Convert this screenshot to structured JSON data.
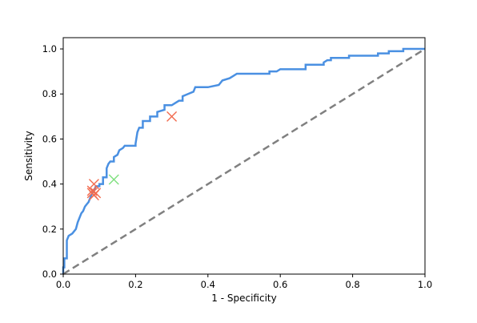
{
  "chart_data": {
    "type": "line",
    "title": "",
    "xlabel": "1 - Specificity",
    "ylabel": "Sensitivity",
    "xlim": [
      0,
      1
    ],
    "ylim": [
      0,
      1.05
    ],
    "xticks": [
      "0.0",
      "0.2",
      "0.4",
      "0.6",
      "0.8",
      "1.0"
    ],
    "yticks": [
      "0.0",
      "0.2",
      "0.4",
      "0.6",
      "0.8",
      "1.0"
    ],
    "grid": false,
    "legend": "none",
    "series": [
      {
        "style": "roc-curve",
        "color": "#4a90e2",
        "points": [
          [
            0.0,
            0.0
          ],
          [
            0.0,
            0.03
          ],
          [
            0.003,
            0.03
          ],
          [
            0.003,
            0.07
          ],
          [
            0.01,
            0.07
          ],
          [
            0.01,
            0.15
          ],
          [
            0.015,
            0.17
          ],
          [
            0.025,
            0.18
          ],
          [
            0.035,
            0.2
          ],
          [
            0.04,
            0.23
          ],
          [
            0.045,
            0.25
          ],
          [
            0.05,
            0.27
          ],
          [
            0.055,
            0.28
          ],
          [
            0.06,
            0.3
          ],
          [
            0.065,
            0.31
          ],
          [
            0.07,
            0.32
          ],
          [
            0.075,
            0.34
          ],
          [
            0.08,
            0.36
          ],
          [
            0.085,
            0.37
          ],
          [
            0.09,
            0.39
          ],
          [
            0.1,
            0.39
          ],
          [
            0.1,
            0.4
          ],
          [
            0.11,
            0.4
          ],
          [
            0.11,
            0.43
          ],
          [
            0.12,
            0.43
          ],
          [
            0.12,
            0.47
          ],
          [
            0.125,
            0.49
          ],
          [
            0.13,
            0.5
          ],
          [
            0.14,
            0.5
          ],
          [
            0.14,
            0.52
          ],
          [
            0.15,
            0.53
          ],
          [
            0.155,
            0.55
          ],
          [
            0.165,
            0.56
          ],
          [
            0.17,
            0.57
          ],
          [
            0.2,
            0.57
          ],
          [
            0.2,
            0.58
          ],
          [
            0.205,
            0.63
          ],
          [
            0.21,
            0.65
          ],
          [
            0.22,
            0.65
          ],
          [
            0.22,
            0.68
          ],
          [
            0.24,
            0.68
          ],
          [
            0.24,
            0.7
          ],
          [
            0.26,
            0.7
          ],
          [
            0.26,
            0.72
          ],
          [
            0.28,
            0.73
          ],
          [
            0.28,
            0.75
          ],
          [
            0.3,
            0.75
          ],
          [
            0.31,
            0.76
          ],
          [
            0.32,
            0.77
          ],
          [
            0.33,
            0.77
          ],
          [
            0.33,
            0.79
          ],
          [
            0.345,
            0.8
          ],
          [
            0.36,
            0.81
          ],
          [
            0.365,
            0.83
          ],
          [
            0.4,
            0.83
          ],
          [
            0.43,
            0.84
          ],
          [
            0.44,
            0.86
          ],
          [
            0.46,
            0.87
          ],
          [
            0.47,
            0.88
          ],
          [
            0.48,
            0.89
          ],
          [
            0.57,
            0.89
          ],
          [
            0.57,
            0.9
          ],
          [
            0.59,
            0.9
          ],
          [
            0.6,
            0.91
          ],
          [
            0.67,
            0.91
          ],
          [
            0.67,
            0.93
          ],
          [
            0.72,
            0.93
          ],
          [
            0.72,
            0.94
          ],
          [
            0.73,
            0.95
          ],
          [
            0.74,
            0.95
          ],
          [
            0.74,
            0.96
          ],
          [
            0.79,
            0.96
          ],
          [
            0.79,
            0.97
          ],
          [
            0.87,
            0.97
          ],
          [
            0.87,
            0.98
          ],
          [
            0.9,
            0.98
          ],
          [
            0.9,
            0.99
          ],
          [
            0.94,
            0.99
          ],
          [
            0.94,
            1.0
          ],
          [
            1.0,
            1.0
          ]
        ]
      },
      {
        "style": "chance-diagonal",
        "color": "#808080",
        "points": [
          [
            0,
            0
          ],
          [
            1,
            1
          ]
        ]
      }
    ],
    "markers": [
      {
        "x": 0.3,
        "y": 0.7,
        "color": "#f26b4f"
      },
      {
        "x": 0.085,
        "y": 0.4,
        "color": "#f26b4f"
      },
      {
        "x": 0.08,
        "y": 0.37,
        "color": "#f26b4f"
      },
      {
        "x": 0.08,
        "y": 0.36,
        "color": "#f26b4f"
      },
      {
        "x": 0.09,
        "y": 0.36,
        "color": "#f26b4f"
      },
      {
        "x": 0.085,
        "y": 0.35,
        "color": "#f26b4f"
      },
      {
        "x": 0.14,
        "y": 0.42,
        "color": "#7ee07e"
      }
    ]
  }
}
